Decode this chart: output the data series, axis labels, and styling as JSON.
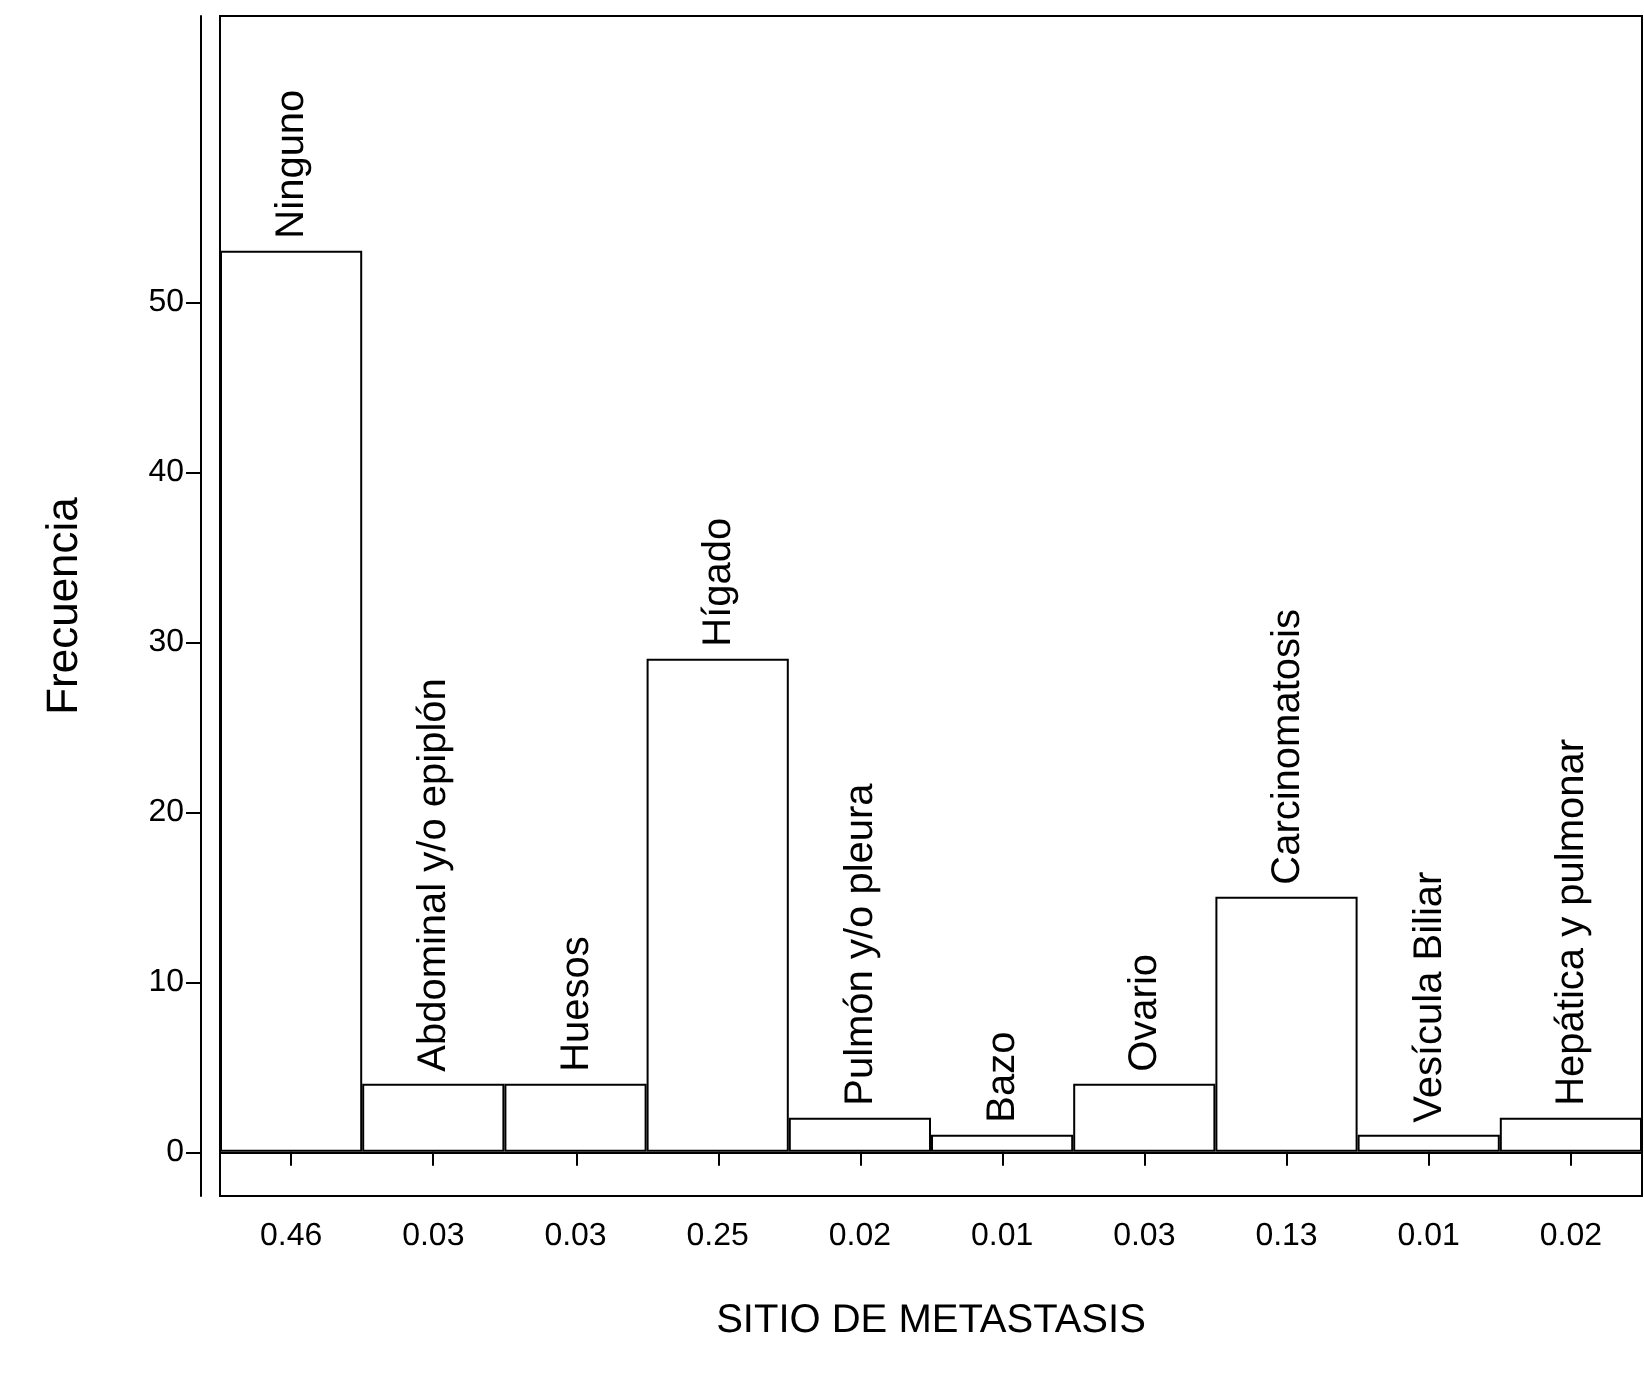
{
  "chart_data": {
    "type": "bar",
    "xlabel": "SITIO DE METASTASIS",
    "ylabel": "Frecuencia",
    "categories": [
      "0.46",
      "0.03",
      "0.03",
      "0.25",
      "0.02",
      "0.01",
      "0.03",
      "0.13",
      "0.01",
      "0.02"
    ],
    "values": [
      53,
      4,
      4,
      29,
      2,
      1,
      4,
      15,
      1,
      2
    ],
    "value_labels": [
      "Ninguno",
      "Abdominal y/o epiplón",
      "Huesos",
      "Hígado",
      "Pulmón y/o pleura",
      "Bazo",
      "Ovario",
      "Carcinomatosis",
      "Vesícula Biliar",
      "Hepática y pulmonar"
    ],
    "color": "#ffffff",
    "ylim": [
      -2.6,
      66.8
    ],
    "yticks": [
      0,
      10,
      20,
      30,
      40,
      50
    ]
  }
}
